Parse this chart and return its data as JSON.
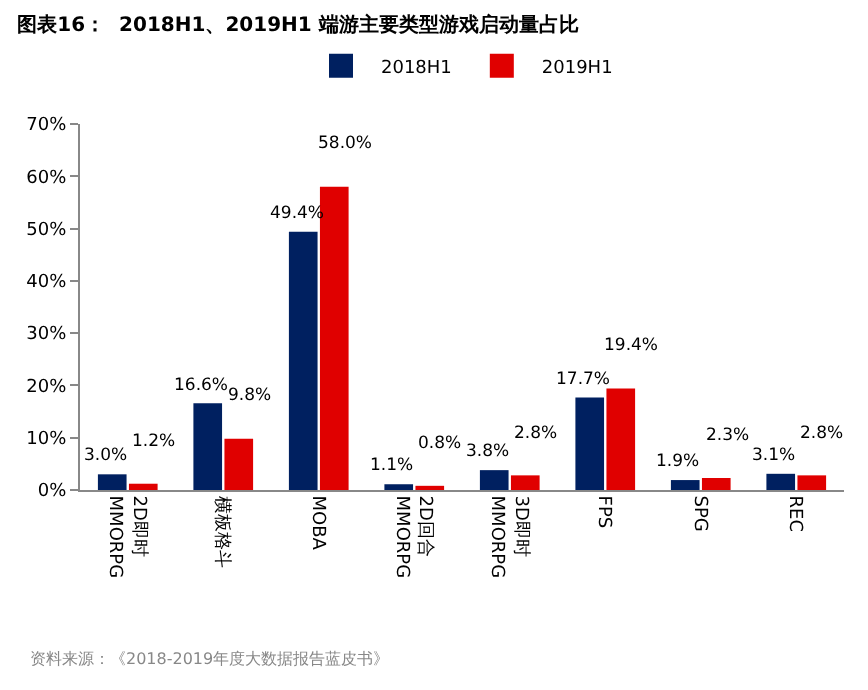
{
  "chart_data": {
    "type": "bar",
    "title": "图表16：  2018H1、2019H1 端游主要类型游戏启动量占比",
    "categories": [
      "2D即时\nMMORPG",
      "横板格斗",
      "MOBA",
      "2D回合\nMMORPG",
      "3D即时\nMMORPG",
      "FPS",
      "SPG",
      "REC"
    ],
    "series": [
      {
        "name": "2018H1",
        "color": "#002060",
        "values": [
          3.0,
          16.6,
          49.4,
          1.1,
          3.8,
          17.7,
          1.9,
          3.1
        ],
        "value_labels": [
          "3.0%",
          "16.6%",
          "49.4%",
          "1.1%",
          "3.8%",
          "17.7%",
          "1.9%",
          "3.1%"
        ]
      },
      {
        "name": "2019H1",
        "color": "#e00000",
        "values": [
          1.2,
          9.8,
          58.0,
          0.8,
          2.8,
          19.4,
          2.3,
          2.8
        ],
        "value_labels": [
          "1.2%",
          "9.8%",
          "58.0%",
          "0.8%",
          "2.8%",
          "19.4%",
          "2.3%",
          "2.8%"
        ]
      }
    ],
    "ylim": [
      0,
      70
    ],
    "yticks": [
      {
        "value": 0,
        "label": "0%"
      },
      {
        "value": 10,
        "label": "10%"
      },
      {
        "value": 20,
        "label": "20%"
      },
      {
        "value": 30,
        "label": "30%"
      },
      {
        "value": 40,
        "label": "40%"
      },
      {
        "value": 50,
        "label": "50%"
      },
      {
        "value": 60,
        "label": "60%"
      },
      {
        "value": 70,
        "label": "70%"
      }
    ],
    "legend": "top",
    "annotations": [
      "资料来源：《2018-2019年度大数据报告蓝皮书》"
    ]
  }
}
